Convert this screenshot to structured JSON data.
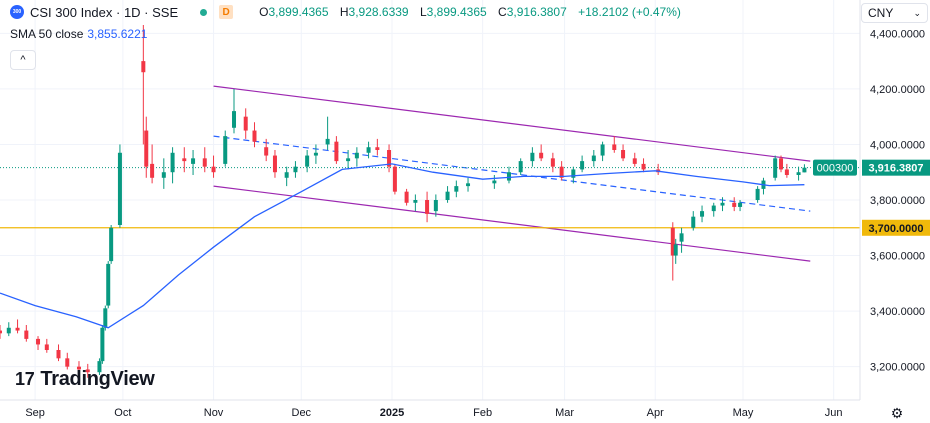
{
  "header": {
    "symbol": "CSI 300 Index · 1D · SSE",
    "logo_text": "300",
    "badge": "D",
    "ohlc": {
      "open_label": "O",
      "open": "3,899.4365",
      "high_label": "H",
      "high": "3,928.6339",
      "low_label": "L",
      "low": "3,899.4365",
      "close_label": "C",
      "close": "3,916.3807",
      "change": "+18.2102 (+0.47%)"
    },
    "sma_label": "SMA 50 close",
    "sma_value": "3,855.6221",
    "collapse_icon": "chevron-up-icon"
  },
  "currency": {
    "label": "CNY",
    "icon": "chevron-down-icon"
  },
  "branding": {
    "mark": "17",
    "name": "TradingView"
  },
  "colors": {
    "up": "#089981",
    "down": "#f23645",
    "sma": "#2962ff",
    "channel": "#9c27b0",
    "support": "#f0b90b",
    "dashed": "#2962ff"
  },
  "chart_data": {
    "type": "candlestick",
    "title": "CSI 300 Index · 1D · SSE",
    "ylim": [
      3080,
      4520
    ],
    "y_ticks": [
      "4,400.0000",
      "4,200.0000",
      "4,000.0000",
      "3,800.0000",
      "3,600.0000",
      "3,400.0000",
      "3,200.0000"
    ],
    "y_tick_values": [
      4400,
      4200,
      4000,
      3800,
      3600,
      3400,
      3200
    ],
    "x_range": [
      "2024-08-20",
      "2025-06-10"
    ],
    "x_ticks": [
      {
        "label": "Sep",
        "date": "2024-09-01"
      },
      {
        "label": "Oct",
        "date": "2024-10-01"
      },
      {
        "label": "Nov",
        "date": "2024-11-01"
      },
      {
        "label": "Dec",
        "date": "2024-12-01"
      },
      {
        "label": "2025",
        "date": "2025-01-01"
      },
      {
        "label": "Feb",
        "date": "2025-02-01"
      },
      {
        "label": "Mar",
        "date": "2025-03-01"
      },
      {
        "label": "Apr",
        "date": "2025-04-01"
      },
      {
        "label": "May",
        "date": "2025-05-01"
      },
      {
        "label": "Jun",
        "date": "2025-06-01"
      }
    ],
    "price_labels": [
      {
        "symbol": "000300",
        "value": "3,916.3807",
        "price": 3916.38
      },
      {
        "value": "3,700.0000",
        "price": 3700
      }
    ],
    "series": [
      {
        "name": "SMA 50 close",
        "points": [
          [
            "2024-08-20",
            3465
          ],
          [
            "2024-09-01",
            3420
          ],
          [
            "2024-09-15",
            3380
          ],
          [
            "2024-09-26",
            3340
          ],
          [
            "2024-10-08",
            3420
          ],
          [
            "2024-10-20",
            3530
          ],
          [
            "2024-11-01",
            3630
          ],
          [
            "2024-11-15",
            3740
          ],
          [
            "2024-12-01",
            3830
          ],
          [
            "2024-12-15",
            3910
          ],
          [
            "2025-01-01",
            3930
          ],
          [
            "2025-01-15",
            3900
          ],
          [
            "2025-02-01",
            3875
          ],
          [
            "2025-02-15",
            3885
          ],
          [
            "2025-03-01",
            3885
          ],
          [
            "2025-03-15",
            3895
          ],
          [
            "2025-04-01",
            3905
          ],
          [
            "2025-04-15",
            3885
          ],
          [
            "2025-05-01",
            3865
          ],
          [
            "2025-05-10",
            3852
          ],
          [
            "2025-05-22",
            3855
          ]
        ]
      }
    ],
    "lines": [
      {
        "name": "channel-upper",
        "from": [
          "2024-11-01",
          4210
        ],
        "to": [
          "2025-05-24",
          3940
        ]
      },
      {
        "name": "channel-lower",
        "from": [
          "2024-11-01",
          3850
        ],
        "to": [
          "2025-05-24",
          3580
        ]
      },
      {
        "name": "channel-mid",
        "from": [
          "2024-11-01",
          4030
        ],
        "to": [
          "2025-05-24",
          3760
        ]
      },
      {
        "name": "support",
        "price": 3700
      }
    ],
    "candles": [
      [
        "2024-08-20",
        3330,
        3350,
        3300,
        3320
      ],
      [
        "2024-08-23",
        3320,
        3360,
        3310,
        3340
      ],
      [
        "2024-08-26",
        3340,
        3370,
        3320,
        3330
      ],
      [
        "2024-08-29",
        3330,
        3350,
        3290,
        3300
      ],
      [
        "2024-09-02",
        3300,
        3310,
        3260,
        3280
      ],
      [
        "2024-09-05",
        3280,
        3300,
        3250,
        3260
      ],
      [
        "2024-09-09",
        3260,
        3280,
        3220,
        3230
      ],
      [
        "2024-09-12",
        3230,
        3250,
        3190,
        3200
      ],
      [
        "2024-09-16",
        3200,
        3220,
        3170,
        3190
      ],
      [
        "2024-09-19",
        3190,
        3210,
        3160,
        3180
      ],
      [
        "2024-09-23",
        3180,
        3230,
        3170,
        3220
      ],
      [
        "2024-09-24",
        3220,
        3350,
        3210,
        3340
      ],
      [
        "2024-09-25",
        3340,
        3420,
        3330,
        3410
      ],
      [
        "2024-09-26",
        3420,
        3580,
        3410,
        3570
      ],
      [
        "2024-09-27",
        3580,
        3710,
        3570,
        3700
      ],
      [
        "2024-09-30",
        3710,
        4000,
        3700,
        3970
      ],
      [
        "2024-10-08",
        4300,
        4430,
        4000,
        4260
      ],
      [
        "2024-10-09",
        4050,
        4100,
        3880,
        3920
      ],
      [
        "2024-10-11",
        3930,
        4000,
        3860,
        3880
      ],
      [
        "2024-10-15",
        3880,
        3950,
        3840,
        3900
      ],
      [
        "2024-10-18",
        3900,
        3990,
        3860,
        3970
      ],
      [
        "2024-10-22",
        3950,
        3990,
        3900,
        3940
      ],
      [
        "2024-10-25",
        3930,
        3980,
        3890,
        3950
      ],
      [
        "2024-10-29",
        3950,
        3990,
        3900,
        3920
      ],
      [
        "2024-11-01",
        3920,
        3960,
        3880,
        3900
      ],
      [
        "2024-11-05",
        3930,
        4050,
        3920,
        4030
      ],
      [
        "2024-11-08",
        4060,
        4200,
        4040,
        4120
      ],
      [
        "2024-11-12",
        4100,
        4130,
        4020,
        4050
      ],
      [
        "2024-11-15",
        4050,
        4080,
        3990,
        4010
      ],
      [
        "2024-11-19",
        3990,
        4020,
        3940,
        3960
      ],
      [
        "2024-11-22",
        3960,
        3980,
        3880,
        3900
      ],
      [
        "2024-11-26",
        3880,
        3920,
        3850,
        3900
      ],
      [
        "2024-11-29",
        3900,
        3940,
        3880,
        3920
      ],
      [
        "2024-12-03",
        3920,
        3980,
        3900,
        3960
      ],
      [
        "2024-12-06",
        3960,
        4000,
        3930,
        3970
      ],
      [
        "2024-12-10",
        4000,
        4100,
        3980,
        4020
      ],
      [
        "2024-12-13",
        4010,
        4030,
        3930,
        3940
      ],
      [
        "2024-12-17",
        3940,
        3980,
        3910,
        3950
      ],
      [
        "2024-12-20",
        3950,
        3990,
        3920,
        3970
      ],
      [
        "2024-12-24",
        3970,
        4010,
        3950,
        3990
      ],
      [
        "2024-12-27",
        3990,
        4020,
        3960,
        3980
      ],
      [
        "2024-12-31",
        3980,
        4000,
        3900,
        3920
      ],
      [
        "2025-01-02",
        3920,
        3930,
        3820,
        3830
      ],
      [
        "2025-01-06",
        3830,
        3840,
        3780,
        3790
      ],
      [
        "2025-01-09",
        3790,
        3820,
        3760,
        3800
      ],
      [
        "2025-01-13",
        3800,
        3830,
        3720,
        3750
      ],
      [
        "2025-01-16",
        3760,
        3820,
        3740,
        3800
      ],
      [
        "2025-01-20",
        3800,
        3850,
        3790,
        3830
      ],
      [
        "2025-01-23",
        3830,
        3870,
        3810,
        3850
      ],
      [
        "2025-01-27",
        3850,
        3880,
        3830,
        3860
      ],
      [
        "2025-02-05",
        3860,
        3890,
        3840,
        3870
      ],
      [
        "2025-02-10",
        3870,
        3920,
        3860,
        3900
      ],
      [
        "2025-02-14",
        3900,
        3950,
        3890,
        3940
      ],
      [
        "2025-02-18",
        3940,
        3990,
        3920,
        3970
      ],
      [
        "2025-02-21",
        3970,
        4000,
        3940,
        3950
      ],
      [
        "2025-02-25",
        3950,
        3970,
        3900,
        3920
      ],
      [
        "2025-02-28",
        3920,
        3940,
        3870,
        3880
      ],
      [
        "2025-03-04",
        3880,
        3920,
        3860,
        3910
      ],
      [
        "2025-03-07",
        3910,
        3960,
        3900,
        3940
      ],
      [
        "2025-03-11",
        3940,
        3980,
        3920,
        3960
      ],
      [
        "2025-03-14",
        3960,
        4010,
        3940,
        4000
      ],
      [
        "2025-03-18",
        4000,
        4030,
        3970,
        3980
      ],
      [
        "2025-03-21",
        3980,
        4000,
        3940,
        3950
      ],
      [
        "2025-03-25",
        3950,
        3970,
        3920,
        3930
      ],
      [
        "2025-03-28",
        3930,
        3950,
        3900,
        3910
      ],
      [
        "2025-04-02",
        3910,
        3930,
        3890,
        3900
      ],
      [
        "2025-04-07",
        3700,
        3720,
        3510,
        3600
      ],
      [
        "2025-04-08",
        3600,
        3660,
        3570,
        3640
      ],
      [
        "2025-04-10",
        3650,
        3700,
        3610,
        3680
      ],
      [
        "2025-04-14",
        3700,
        3760,
        3690,
        3740
      ],
      [
        "2025-04-17",
        3740,
        3780,
        3720,
        3760
      ],
      [
        "2025-04-21",
        3760,
        3790,
        3740,
        3780
      ],
      [
        "2025-04-24",
        3780,
        3810,
        3760,
        3790
      ],
      [
        "2025-04-28",
        3790,
        3810,
        3760,
        3775
      ],
      [
        "2025-04-30",
        3775,
        3800,
        3760,
        3790
      ],
      [
        "2025-05-06",
        3800,
        3850,
        3790,
        3840
      ],
      [
        "2025-05-08",
        3840,
        3880,
        3820,
        3870
      ],
      [
        "2025-05-12",
        3880,
        3960,
        3870,
        3950
      ],
      [
        "2025-05-14",
        3950,
        3960,
        3900,
        3910
      ],
      [
        "2025-05-16",
        3910,
        3930,
        3880,
        3890
      ],
      [
        "2025-05-20",
        3890,
        3920,
        3870,
        3900
      ],
      [
        "2025-05-22",
        3899.4365,
        3928.6339,
        3899.4365,
        3916.3807
      ]
    ]
  }
}
